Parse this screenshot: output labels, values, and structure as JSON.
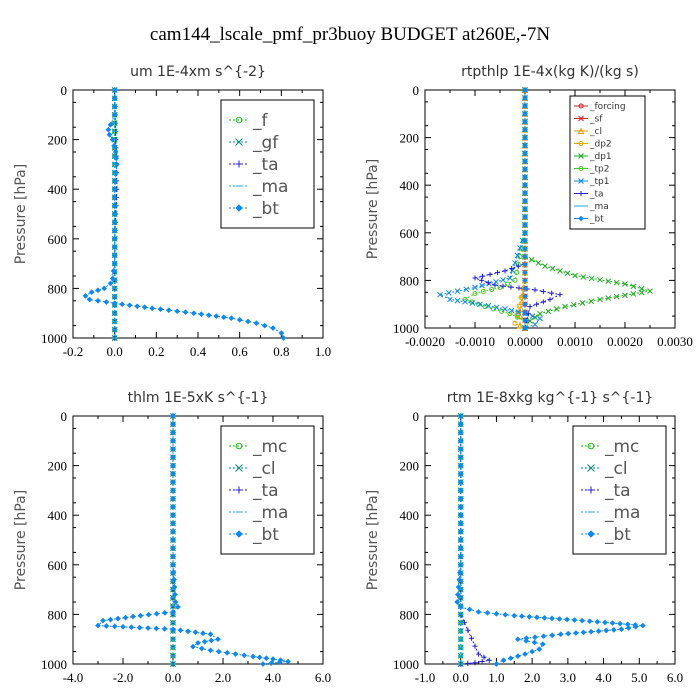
{
  "main_title": "cam144_lscale_pmf_pr3buoy  BUDGET at260E,-7N",
  "chart_data": [
    {
      "type": "line",
      "title": "um  1E-4xm s^{-2}",
      "ylabel": "Pressure [hPa]",
      "xlim": [
        -0.2,
        1.0
      ],
      "ylim": [
        1000,
        0
      ],
      "xticks": [
        "-0.2",
        "0.0",
        "0.2",
        "0.4",
        "0.6",
        "0.8",
        "1.0"
      ],
      "xtick_values": [
        -0.2,
        0.0,
        0.2,
        0.4,
        0.6,
        0.8,
        1.0
      ],
      "yticks": [
        "0",
        "200",
        "400",
        "600",
        "800",
        "1000"
      ],
      "ytick_values": [
        0,
        200,
        400,
        600,
        800,
        1000
      ],
      "legend_position": "top-right",
      "legend_style": "large",
      "series": [
        {
          "name": "_f",
          "color": "#22bb22",
          "marker": "circle",
          "x": [
            0,
            0,
            0,
            0,
            0,
            0
          ],
          "y": [
            0,
            200,
            400,
            600,
            800,
            1000
          ]
        },
        {
          "name": "_gf",
          "color": "#118888",
          "marker": "x",
          "x": [
            0,
            0,
            0,
            0,
            0,
            0
          ],
          "y": [
            0,
            200,
            400,
            600,
            800,
            1000
          ]
        },
        {
          "name": "_ta",
          "color": "#2222cc",
          "marker": "plus",
          "x": [
            0,
            0.005,
            0.01,
            0,
            0,
            0
          ],
          "y": [
            0,
            200,
            400,
            600,
            800,
            1000
          ]
        },
        {
          "name": "_ma",
          "color": "#22aaee",
          "marker": "dash",
          "x": [
            0,
            0,
            0,
            0,
            0,
            0
          ],
          "y": [
            0,
            200,
            400,
            600,
            800,
            1000
          ]
        },
        {
          "name": "_bt",
          "color": "#1188ee",
          "marker": "diamond",
          "x": [
            0,
            0,
            -0.02,
            -0.03,
            -0.025,
            -0.01,
            0.005,
            0.01,
            0,
            0,
            0,
            0,
            -0.01,
            -0.02,
            -0.05,
            -0.11,
            -0.14,
            -0.12,
            0,
            0.18,
            0.38,
            0.56,
            0.68,
            0.76,
            0.8,
            0.81
          ],
          "y": [
            0,
            100,
            140,
            160,
            180,
            200,
            250,
            300,
            400,
            500,
            600,
            700,
            760,
            780,
            800,
            815,
            830,
            845,
            860,
            880,
            900,
            920,
            940,
            960,
            980,
            1000
          ]
        }
      ]
    },
    {
      "type": "line",
      "title": "rtpthlp  1E-4x(kg K)/(kg s)",
      "ylabel": "Pressure [hPa]",
      "xlim": [
        -0.002,
        0.003
      ],
      "ylim": [
        1000,
        0
      ],
      "xticks": [
        "-0.0020",
        "-0.0010",
        "0.0000",
        "0.0010",
        "0.0020",
        "0.0030"
      ],
      "xtick_values": [
        -0.002,
        -0.001,
        0.0,
        0.001,
        0.002,
        0.003
      ],
      "yticks": [
        "0",
        "200",
        "400",
        "600",
        "800",
        "1000"
      ],
      "ytick_values": [
        0,
        200,
        400,
        600,
        800,
        1000
      ],
      "legend_position": "top-right",
      "legend_style": "small",
      "series": [
        {
          "name": "_forcing",
          "color": "#cc2222",
          "marker": "circle",
          "x": [
            0,
            0,
            0,
            0,
            0,
            0
          ],
          "y": [
            0,
            200,
            400,
            600,
            800,
            1000
          ]
        },
        {
          "name": "_sf",
          "color": "#dd2222",
          "marker": "x",
          "x": [
            0,
            0,
            0,
            0,
            0,
            0
          ],
          "y": [
            0,
            200,
            400,
            600,
            800,
            1000
          ]
        },
        {
          "name": "_cl",
          "color": "#ee9900",
          "marker": "triangle",
          "x": [
            0,
            0,
            0,
            0,
            0,
            -0.0001,
            -0.0001,
            0
          ],
          "y": [
            0,
            200,
            400,
            600,
            800,
            950,
            990,
            1000
          ]
        },
        {
          "name": "_dp2",
          "color": "#ddaa00",
          "marker": "circle",
          "x": [
            0,
            0,
            0,
            0,
            0,
            -0.0002,
            0
          ],
          "y": [
            0,
            200,
            400,
            600,
            800,
            980,
            1000
          ]
        },
        {
          "name": "_dp1",
          "color": "#22aa22",
          "marker": "x",
          "x": [
            0,
            0,
            0,
            0,
            0,
            0.0004,
            0.001,
            0.002,
            0.0025,
            0.0015,
            0.0008,
            0.0003,
            0.0001,
            0
          ],
          "y": [
            0,
            200,
            400,
            600,
            700,
            740,
            780,
            815,
            845,
            880,
            910,
            940,
            970,
            1000
          ]
        },
        {
          "name": "_tp2",
          "color": "#44cc22",
          "marker": "circle",
          "x": [
            0,
            0,
            0,
            -0.0002,
            -0.0005,
            -0.001,
            -0.0012,
            -0.0008,
            -0.0003,
            0,
            0
          ],
          "y": [
            0,
            200,
            600,
            800,
            830,
            855,
            880,
            910,
            940,
            970,
            1000
          ]
        },
        {
          "name": "_tp1",
          "color": "#1188dd",
          "marker": "x",
          "x": [
            0,
            0,
            0,
            -0.0003,
            -0.001,
            -0.0017,
            -0.0015,
            -0.0009,
            -0.0004,
            0,
            0.0003,
            0.0002,
            0
          ],
          "y": [
            0,
            200,
            600,
            790,
            830,
            860,
            880,
            900,
            920,
            940,
            960,
            985,
            1000
          ]
        },
        {
          "name": "_ta",
          "color": "#2222cc",
          "marker": "plus",
          "x": [
            0,
            0,
            0,
            0,
            -0.0004,
            -0.001,
            -0.0006,
            0.0002,
            0.0007,
            0.0005,
            0.0001,
            0
          ],
          "y": [
            0,
            200,
            600,
            730,
            760,
            790,
            820,
            840,
            860,
            880,
            910,
            1000
          ]
        },
        {
          "name": "_ma",
          "color": "#22aaee",
          "marker": "dash",
          "x": [
            0,
            0,
            0,
            0,
            0,
            0
          ],
          "y": [
            0,
            200,
            400,
            600,
            800,
            1000
          ]
        },
        {
          "name": "_bt",
          "color": "#1188ee",
          "marker": "diamond",
          "x": [
            0,
            0,
            0,
            0,
            0,
            0
          ],
          "y": [
            0,
            200,
            400,
            600,
            800,
            1000
          ]
        }
      ]
    },
    {
      "type": "line",
      "title": "thlm  1E-5xK  s^{-1}",
      "ylabel": "Pressure [hPa]",
      "xlim": [
        -4.0,
        6.0
      ],
      "ylim": [
        1000,
        0
      ],
      "xticks": [
        "-4.0",
        "-2.0",
        "0.0",
        "2.0",
        "4.0",
        "6.0"
      ],
      "xtick_values": [
        -4.0,
        -2.0,
        0.0,
        2.0,
        4.0,
        6.0
      ],
      "yticks": [
        "0",
        "200",
        "400",
        "600",
        "800",
        "1000"
      ],
      "ytick_values": [
        0,
        200,
        400,
        600,
        800,
        1000
      ],
      "legend_position": "top-right",
      "legend_style": "large",
      "series": [
        {
          "name": "_mc",
          "color": "#22bb22",
          "marker": "circle",
          "x": [
            0,
            0,
            0,
            0,
            0,
            0
          ],
          "y": [
            0,
            200,
            400,
            600,
            800,
            1000
          ]
        },
        {
          "name": "_cl",
          "color": "#118888",
          "marker": "x",
          "x": [
            0,
            0,
            0,
            0,
            0,
            0
          ],
          "y": [
            0,
            200,
            400,
            600,
            800,
            1000
          ]
        },
        {
          "name": "_ta",
          "color": "#2222cc",
          "marker": "plus",
          "x": [
            0,
            0,
            0,
            0,
            0,
            0
          ],
          "y": [
            0,
            200,
            400,
            600,
            800,
            1000
          ]
        },
        {
          "name": "_ma",
          "color": "#22aaee",
          "marker": "dash",
          "x": [
            0,
            0,
            0,
            0,
            0,
            0
          ],
          "y": [
            0,
            200,
            400,
            600,
            800,
            1000
          ]
        },
        {
          "name": "_bt",
          "color": "#1188ee",
          "marker": "diamond",
          "x": [
            0,
            0,
            0,
            0,
            0.1,
            0.2,
            0.0,
            -1.3,
            -2.8,
            -3.0,
            0,
            1.5,
            1.8,
            1.0,
            0.8,
            1.5,
            2.5,
            3.2,
            4.0,
            4.6,
            3.6
          ],
          "y": [
            0,
            200,
            400,
            600,
            750,
            770,
            790,
            805,
            825,
            845,
            860,
            880,
            900,
            915,
            930,
            945,
            960,
            970,
            980,
            990,
            1000
          ]
        }
      ]
    },
    {
      "type": "line",
      "title": "rtm  1E-8xkg kg^{-1} s^{-1}",
      "ylabel": "Pressure [hPa]",
      "xlim": [
        -1.0,
        6.0
      ],
      "ylim": [
        1000,
        0
      ],
      "xticks": [
        "-1.0",
        "0.0",
        "1.0",
        "2.0",
        "3.0",
        "4.0",
        "5.0",
        "6.0"
      ],
      "xtick_values": [
        -1.0,
        0.0,
        1.0,
        2.0,
        3.0,
        4.0,
        5.0,
        6.0
      ],
      "yticks": [
        "0",
        "200",
        "400",
        "600",
        "800",
        "1000"
      ],
      "ytick_values": [
        0,
        200,
        400,
        600,
        800,
        1000
      ],
      "legend_position": "top-right",
      "legend_style": "large",
      "series": [
        {
          "name": "_mc",
          "color": "#22bb22",
          "marker": "circle",
          "x": [
            0,
            0,
            0,
            0,
            0,
            0
          ],
          "y": [
            0,
            200,
            400,
            600,
            800,
            1000
          ]
        },
        {
          "name": "_cl",
          "color": "#118888",
          "marker": "x",
          "x": [
            0,
            0,
            0,
            0,
            0,
            0
          ],
          "y": [
            0,
            200,
            400,
            600,
            800,
            1000
          ]
        },
        {
          "name": "_ta",
          "color": "#2222cc",
          "marker": "plus",
          "x": [
            0,
            0,
            0,
            0,
            0,
            0.5,
            0.8,
            0.4,
            0
          ],
          "y": [
            0,
            200,
            400,
            600,
            800,
            960,
            985,
            995,
            1000
          ]
        },
        {
          "name": "_ma",
          "color": "#22aaee",
          "marker": "dash",
          "x": [
            0,
            0,
            0,
            0,
            0,
            0
          ],
          "y": [
            0,
            200,
            400,
            600,
            800,
            1000
          ]
        },
        {
          "name": "_bt",
          "color": "#1188ee",
          "marker": "diamond",
          "x": [
            0,
            0,
            0,
            0,
            -0.1,
            0,
            0.5,
            1.5,
            3.4,
            5.1,
            4.5,
            2.8,
            1.6,
            2.3,
            2.2,
            1.8,
            1.2,
            1.0
          ],
          "y": [
            0,
            200,
            400,
            600,
            750,
            770,
            790,
            805,
            825,
            845,
            860,
            880,
            900,
            920,
            940,
            960,
            985,
            1000
          ]
        }
      ]
    }
  ]
}
